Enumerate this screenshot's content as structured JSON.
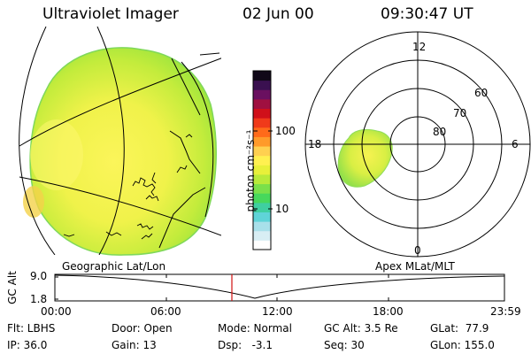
{
  "header": {
    "title": "Ultraviolet Imager",
    "date": "02 Jun 00",
    "time": "09:30:47 UT"
  },
  "colorbar": {
    "unit_label": "photon cm⁻²s⁻¹",
    "ticks": [
      "100",
      "10"
    ],
    "colors": [
      "#ffffff",
      "#d8eef4",
      "#a8e0ea",
      "#5fd4d8",
      "#3fcfa0",
      "#47d85c",
      "#7ae04a",
      "#b8ea3a",
      "#e8f03a",
      "#fff050",
      "#ffd050",
      "#ff9a2a",
      "#ff6a1a",
      "#f03a1a",
      "#d0101a",
      "#a01040",
      "#6a1060",
      "#3a1050",
      "#100818"
    ]
  },
  "polar_plot": {
    "lat_labels": [
      "60",
      "70",
      "80"
    ],
    "mlt_labels": {
      "top": "12",
      "left": "18",
      "right": "6",
      "bottom": "0"
    }
  },
  "timeline": {
    "left_title": "Geographic Lat/Lon",
    "right_title": "Apex MLat/MLT",
    "ylabel": "GC Alt",
    "ymax": "9.0",
    "ymin": "1.8",
    "xticks": [
      "00:00",
      "06:00",
      "12:00",
      "18:00",
      "23:59"
    ],
    "marker_color": "#d01010"
  },
  "info": {
    "flt": "Flt: LBHS",
    "ip": "IP: 36.0",
    "door": "Door: Open",
    "gain": "Gain: 13",
    "mode": "Mode: Normal",
    "dsp": "Dsp:   -3.1",
    "gcalt": "GC Alt: 3.5 Re",
    "seq": "Seq: 30",
    "glat": "GLat:  77.9",
    "glon": "GLon: 155.0"
  }
}
